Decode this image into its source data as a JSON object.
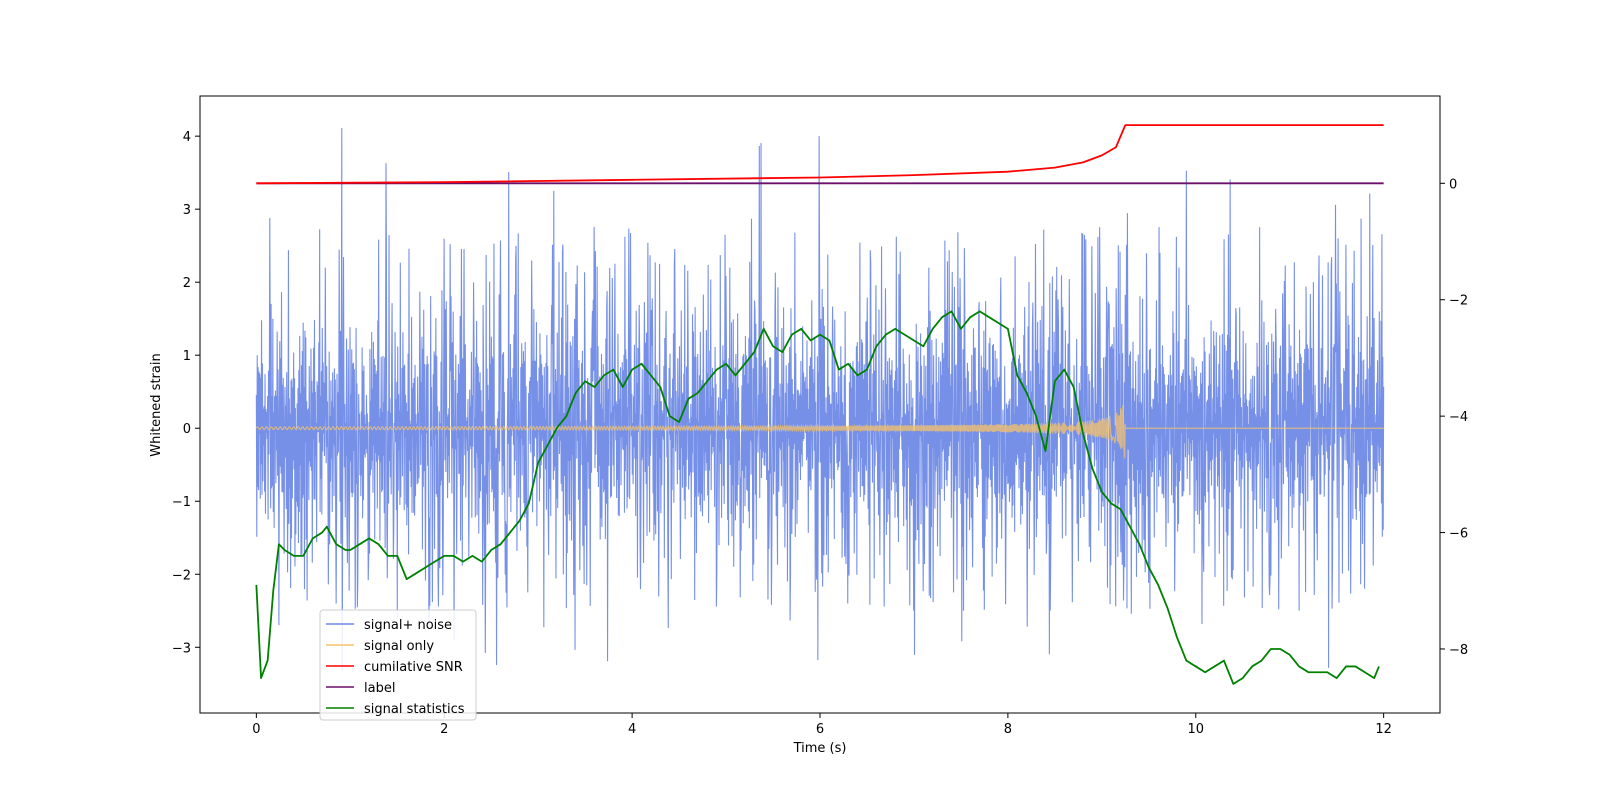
{
  "chart_data": {
    "type": "line",
    "title": "",
    "xlabel": "Time (s)",
    "ylabel": "Whitened strain",
    "y2label": "",
    "xlim": [
      -0.6,
      12.6
    ],
    "ylim": [
      -3.9,
      4.55
    ],
    "y2lim": [
      -9.1,
      1.5
    ],
    "x_ticks": [
      0,
      2,
      4,
      6,
      8,
      10,
      12
    ],
    "x_tick_labels": [
      "0",
      "2",
      "4",
      "6",
      "8",
      "10",
      "12"
    ],
    "y_ticks": [
      -3,
      -2,
      -1,
      0,
      1,
      2,
      3,
      4
    ],
    "y_tick_labels": [
      "−3",
      "−2",
      "−1",
      "0",
      "1",
      "2",
      "3",
      "4"
    ],
    "y2_ticks": [
      -8,
      -6,
      -4,
      -2,
      0
    ],
    "y2_tick_labels": [
      "−8",
      "−6",
      "−4",
      "−2",
      "0"
    ],
    "grid": false,
    "legend_position": "lower-left",
    "series": [
      {
        "name": "signal+ noise",
        "color": "#6a87e6",
        "axis": "left",
        "kind": "noise",
        "x_range": [
          0,
          12
        ],
        "band_approx": [
          -1.6,
          1.6
        ],
        "spike_range_approx": [
          -3.6,
          4.2
        ]
      },
      {
        "name": "signal only",
        "color": "#f7c36a",
        "axis": "left",
        "kind": "chirp",
        "x_range": [
          0,
          12
        ],
        "merger_time": 9.25,
        "peak_amplitude": 0.55
      },
      {
        "name": "cumilative SNR",
        "color": "#ff0000",
        "axis": "right",
        "x": [
          0,
          2,
          4,
          6,
          7,
          8,
          8.5,
          8.8,
          9.0,
          9.15,
          9.25,
          12
        ],
        "values": [
          0,
          0.02,
          0.06,
          0.1,
          0.14,
          0.2,
          0.27,
          0.36,
          0.48,
          0.62,
          1.0,
          1.0
        ]
      },
      {
        "name": "label",
        "color": "#6b0f6b",
        "axis": "right",
        "x": [
          0,
          12
        ],
        "values": [
          0,
          0
        ]
      },
      {
        "name": "signal statistics",
        "color": "#008000",
        "axis": "right",
        "x": [
          0,
          0.05,
          0.12,
          0.18,
          0.24,
          0.3,
          0.4,
          0.5,
          0.6,
          0.7,
          0.75,
          0.85,
          0.95,
          1.0,
          1.1,
          1.2,
          1.3,
          1.4,
          1.5,
          1.6,
          1.7,
          1.8,
          1.9,
          2.0,
          2.1,
          2.2,
          2.3,
          2.4,
          2.5,
          2.6,
          2.7,
          2.8,
          2.9,
          3.0,
          3.1,
          3.2,
          3.3,
          3.4,
          3.5,
          3.6,
          3.7,
          3.8,
          3.9,
          4.0,
          4.1,
          4.2,
          4.3,
          4.4,
          4.5,
          4.6,
          4.7,
          4.8,
          4.9,
          5.0,
          5.1,
          5.2,
          5.3,
          5.4,
          5.5,
          5.6,
          5.7,
          5.8,
          5.9,
          6.0,
          6.1,
          6.2,
          6.3,
          6.4,
          6.5,
          6.6,
          6.7,
          6.8,
          6.9,
          7.0,
          7.1,
          7.2,
          7.3,
          7.4,
          7.5,
          7.6,
          7.7,
          7.8,
          7.9,
          8.0,
          8.1,
          8.2,
          8.3,
          8.4,
          8.5,
          8.6,
          8.7,
          8.8,
          8.9,
          9.0,
          9.1,
          9.2,
          9.3,
          9.4,
          9.5,
          9.6,
          9.7,
          9.8,
          9.9,
          10.0,
          10.1,
          10.2,
          10.3,
          10.4,
          10.5,
          10.6,
          10.7,
          10.8,
          10.9,
          11.0,
          11.1,
          11.2,
          11.3,
          11.4,
          11.5,
          11.6,
          11.7,
          11.8,
          11.9,
          11.95
        ],
        "values": [
          -6.9,
          -8.5,
          -8.2,
          -7.0,
          -6.2,
          -6.3,
          -6.4,
          -6.4,
          -6.1,
          -6.0,
          -5.9,
          -6.2,
          -6.3,
          -6.3,
          -6.2,
          -6.1,
          -6.2,
          -6.4,
          -6.4,
          -6.8,
          -6.7,
          -6.6,
          -6.5,
          -6.4,
          -6.4,
          -6.5,
          -6.4,
          -6.5,
          -6.3,
          -6.2,
          -6.0,
          -5.8,
          -5.5,
          -4.8,
          -4.5,
          -4.2,
          -4.0,
          -3.6,
          -3.4,
          -3.5,
          -3.3,
          -3.2,
          -3.5,
          -3.2,
          -3.1,
          -3.3,
          -3.5,
          -4.0,
          -4.1,
          -3.7,
          -3.6,
          -3.4,
          -3.2,
          -3.1,
          -3.3,
          -3.1,
          -2.9,
          -2.5,
          -2.8,
          -2.9,
          -2.6,
          -2.5,
          -2.7,
          -2.6,
          -2.7,
          -3.2,
          -3.1,
          -3.3,
          -3.2,
          -2.8,
          -2.6,
          -2.5,
          -2.6,
          -2.7,
          -2.8,
          -2.5,
          -2.3,
          -2.2,
          -2.5,
          -2.3,
          -2.2,
          -2.3,
          -2.4,
          -2.5,
          -3.3,
          -3.6,
          -4.0,
          -4.6,
          -3.4,
          -3.2,
          -3.5,
          -4.3,
          -4.9,
          -5.3,
          -5.5,
          -5.6,
          -5.9,
          -6.2,
          -6.6,
          -6.9,
          -7.3,
          -7.8,
          -8.2,
          -8.3,
          -8.4,
          -8.3,
          -8.2,
          -8.6,
          -8.5,
          -8.3,
          -8.2,
          -8.0,
          -8.0,
          -8.1,
          -8.3,
          -8.4,
          -8.4,
          -8.4,
          -8.5,
          -8.3,
          -8.3,
          -8.4,
          -8.5,
          -8.3
        ]
      }
    ]
  }
}
